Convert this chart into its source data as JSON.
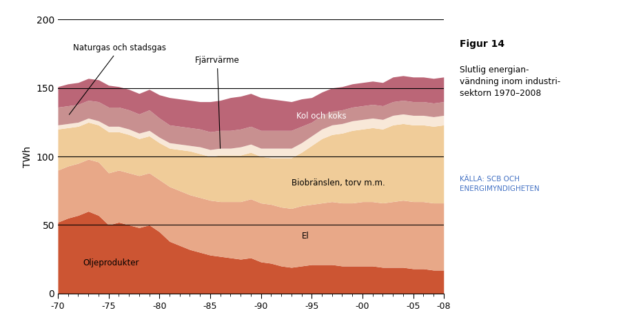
{
  "years": [
    1970,
    1971,
    1972,
    1973,
    1974,
    1975,
    1976,
    1977,
    1978,
    1979,
    1980,
    1981,
    1982,
    1983,
    1984,
    1985,
    1986,
    1987,
    1988,
    1989,
    1990,
    1991,
    1992,
    1993,
    1994,
    1995,
    1996,
    1997,
    1998,
    1999,
    2000,
    2001,
    2002,
    2003,
    2004,
    2005,
    2006,
    2007,
    2008
  ],
  "oljeprodukter": [
    52,
    55,
    57,
    60,
    57,
    50,
    52,
    50,
    48,
    50,
    45,
    38,
    35,
    32,
    30,
    28,
    27,
    26,
    25,
    26,
    23,
    22,
    20,
    19,
    20,
    21,
    21,
    21,
    20,
    20,
    20,
    20,
    19,
    19,
    19,
    18,
    18,
    17,
    17
  ],
  "el": [
    38,
    38,
    38,
    38,
    39,
    38,
    38,
    38,
    38,
    38,
    38,
    40,
    40,
    40,
    40,
    40,
    40,
    41,
    42,
    43,
    43,
    43,
    43,
    43,
    44,
    44,
    45,
    46,
    46,
    46,
    47,
    47,
    47,
    48,
    49,
    49,
    49,
    49,
    49
  ],
  "biobranslen": [
    30,
    28,
    27,
    27,
    27,
    30,
    28,
    28,
    27,
    27,
    27,
    28,
    30,
    32,
    32,
    32,
    34,
    34,
    34,
    34,
    34,
    34,
    36,
    37,
    39,
    43,
    47,
    49,
    51,
    53,
    53,
    54,
    54,
    56,
    56,
    56,
    56,
    56,
    57
  ],
  "fjarrvärme": [
    3,
    3,
    3,
    3,
    3,
    4,
    4,
    4,
    4,
    4,
    4,
    4,
    4,
    4,
    5,
    5,
    5,
    5,
    6,
    6,
    6,
    7,
    7,
    7,
    7,
    7,
    7,
    7,
    7,
    7,
    7,
    7,
    7,
    7,
    7,
    7,
    7,
    7,
    7
  ],
  "naturgas": [
    13,
    13,
    13,
    13,
    14,
    14,
    14,
    14,
    14,
    15,
    14,
    13,
    13,
    13,
    13,
    13,
    13,
    13,
    13,
    13,
    13,
    13,
    13,
    13,
    12,
    10,
    10,
    10,
    10,
    10,
    10,
    10,
    10,
    10,
    10,
    10,
    10,
    10,
    10
  ],
  "kol_och_koks": [
    15,
    16,
    16,
    16,
    16,
    16,
    15,
    15,
    15,
    15,
    17,
    20,
    20,
    20,
    20,
    22,
    22,
    24,
    24,
    24,
    24,
    23,
    22,
    21,
    20,
    18,
    17,
    17,
    17,
    17,
    17,
    17,
    17,
    18,
    18,
    18,
    18,
    18,
    18
  ],
  "colors": {
    "oljeprodukter": "#cc5533",
    "el": "#e8a888",
    "biobranslen": "#f0cc99",
    "fjarrvärme": "#f8e8d8",
    "naturgas": "#c89090",
    "kol_och_koks": "#bb6677"
  },
  "ylabel": "TWh",
  "ylim": [
    0,
    200
  ],
  "yticks": [
    0,
    50,
    100,
    150,
    200
  ],
  "figur_title": "Figur 14",
  "figur_subtitle": "Slutlig energian-\nvändning inom industri-\nsektorn 1970–2008",
  "kalla": "KÄLLA: SCB OCH\nENERGIMYNDIGHETEN",
  "kalla_color": "#4472c4",
  "figur_title_color": "#000000"
}
